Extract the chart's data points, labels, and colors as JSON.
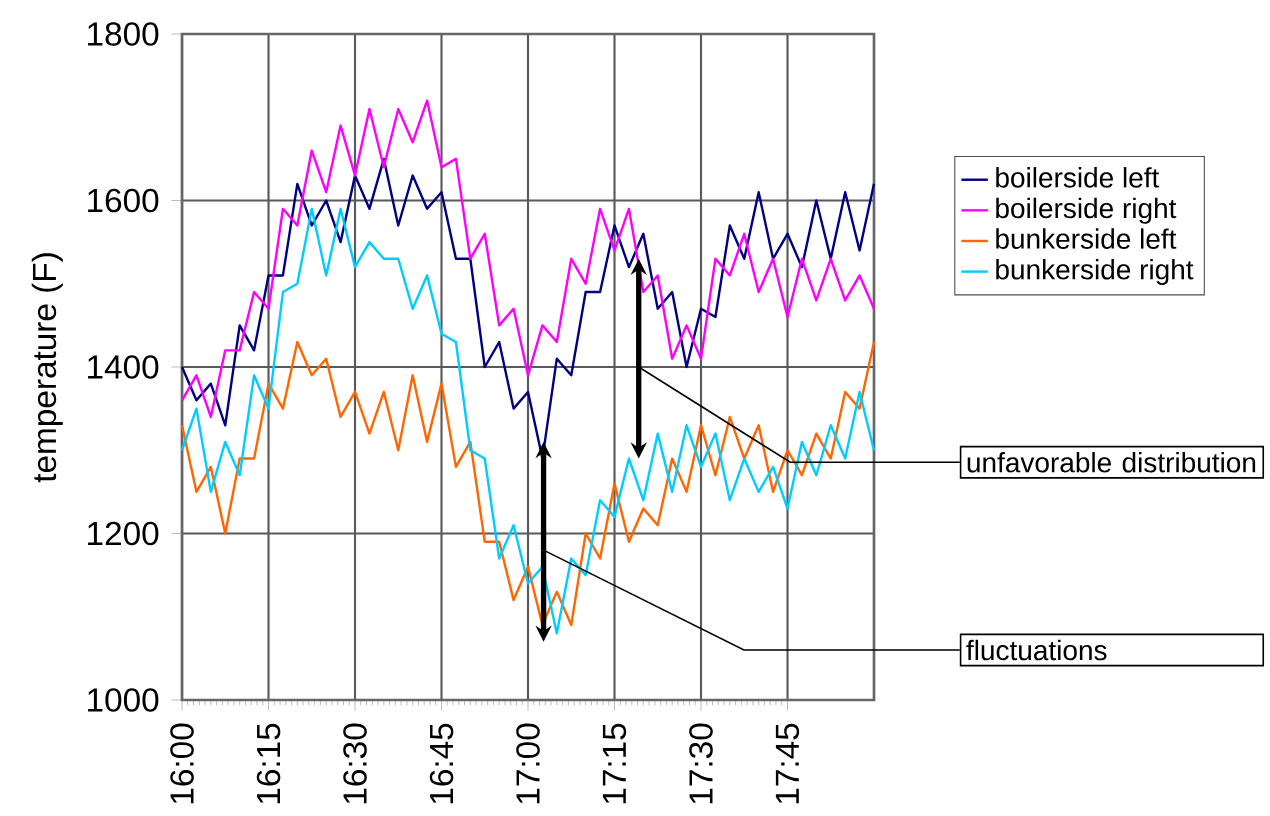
{
  "chart_data": {
    "type": "line",
    "ylabel": "temperature (F)",
    "x": [
      16,
      16.0417,
      16.0833,
      16.125,
      16.1667,
      16.2083,
      16.25,
      16.2917,
      16.3333,
      16.375,
      16.4167,
      16.4583,
      16.5,
      16.5417,
      16.5833,
      16.625,
      16.6667,
      16.7083,
      16.75,
      16.7917,
      16.8333,
      16.875,
      16.9167,
      16.9583,
      17,
      17.0417,
      17.0833,
      17.125,
      17.1667,
      17.2083,
      17.25,
      17.2917,
      17.3333,
      17.375,
      17.4167,
      17.4583,
      17.5,
      17.5417,
      17.5833,
      17.625,
      17.6667,
      17.7083,
      17.75,
      17.7917,
      17.8333,
      17.875,
      17.9167,
      17.9583,
      18
    ],
    "series": [
      {
        "name": "boilerside left",
        "color": "#000080",
        "values": [
          1400,
          1360,
          1380,
          1330,
          1450,
          1420,
          1510,
          1510,
          1620,
          1570,
          1600,
          1550,
          1630,
          1590,
          1650,
          1570,
          1630,
          1590,
          1610,
          1530,
          1530,
          1400,
          1430,
          1350,
          1370,
          1290,
          1410,
          1390,
          1490,
          1490,
          1570,
          1520,
          1560,
          1470,
          1490,
          1400,
          1470,
          1460,
          1570,
          1530,
          1610,
          1530,
          1560,
          1520,
          1600,
          1530,
          1610,
          1540,
          1620
        ]
      },
      {
        "name": "boilerside right",
        "color": "#ff00ff",
        "values": [
          1360,
          1390,
          1340,
          1420,
          1420,
          1490,
          1470,
          1590,
          1570,
          1660,
          1610,
          1690,
          1630,
          1710,
          1640,
          1710,
          1670,
          1720,
          1640,
          1650,
          1530,
          1560,
          1450,
          1470,
          1390,
          1450,
          1430,
          1530,
          1500,
          1590,
          1540,
          1590,
          1490,
          1510,
          1410,
          1450,
          1410,
          1530,
          1510,
          1560,
          1490,
          1530,
          1460,
          1530,
          1480,
          1530,
          1480,
          1510,
          1470
        ]
      },
      {
        "name": "bunkerside left",
        "color": "#ff6600",
        "values": [
          1330,
          1250,
          1280,
          1200,
          1290,
          1290,
          1380,
          1350,
          1430,
          1390,
          1410,
          1340,
          1370,
          1320,
          1370,
          1300,
          1390,
          1310,
          1380,
          1280,
          1310,
          1190,
          1190,
          1120,
          1160,
          1090,
          1130,
          1090,
          1200,
          1170,
          1260,
          1190,
          1230,
          1210,
          1290,
          1250,
          1330,
          1270,
          1340,
          1290,
          1330,
          1250,
          1300,
          1270,
          1320,
          1290,
          1370,
          1350,
          1430
        ]
      },
      {
        "name": "bunkerside right",
        "color": "#00ccff",
        "values": [
          1300,
          1350,
          1250,
          1310,
          1270,
          1390,
          1350,
          1490,
          1500,
          1590,
          1510,
          1590,
          1520,
          1550,
          1530,
          1530,
          1470,
          1510,
          1440,
          1430,
          1300,
          1290,
          1170,
          1210,
          1140,
          1160,
          1080,
          1170,
          1150,
          1240,
          1220,
          1290,
          1240,
          1320,
          1250,
          1330,
          1280,
          1320,
          1240,
          1290,
          1250,
          1280,
          1230,
          1310,
          1270,
          1330,
          1290,
          1370,
          1300
        ]
      }
    ],
    "xlim": [
      16,
      18
    ],
    "xticks": [
      {
        "value": 16,
        "label": "16:00"
      },
      {
        "value": 16.25,
        "label": "16:15"
      },
      {
        "value": 16.5,
        "label": "16:30"
      },
      {
        "value": 16.75,
        "label": "16:45"
      },
      {
        "value": 17,
        "label": "17:00"
      },
      {
        "value": 17.25,
        "label": "17:15"
      },
      {
        "value": 17.5,
        "label": "17:30"
      },
      {
        "value": 17.75,
        "label": "17:45"
      }
    ],
    "ylim": [
      1000,
      1800
    ],
    "yticks": [
      1000,
      1200,
      1400,
      1600,
      1800
    ],
    "grid": true,
    "legend": "right",
    "line_style": "solid",
    "annotations": [
      "unfavorable distribution",
      "fluctuations"
    ]
  }
}
